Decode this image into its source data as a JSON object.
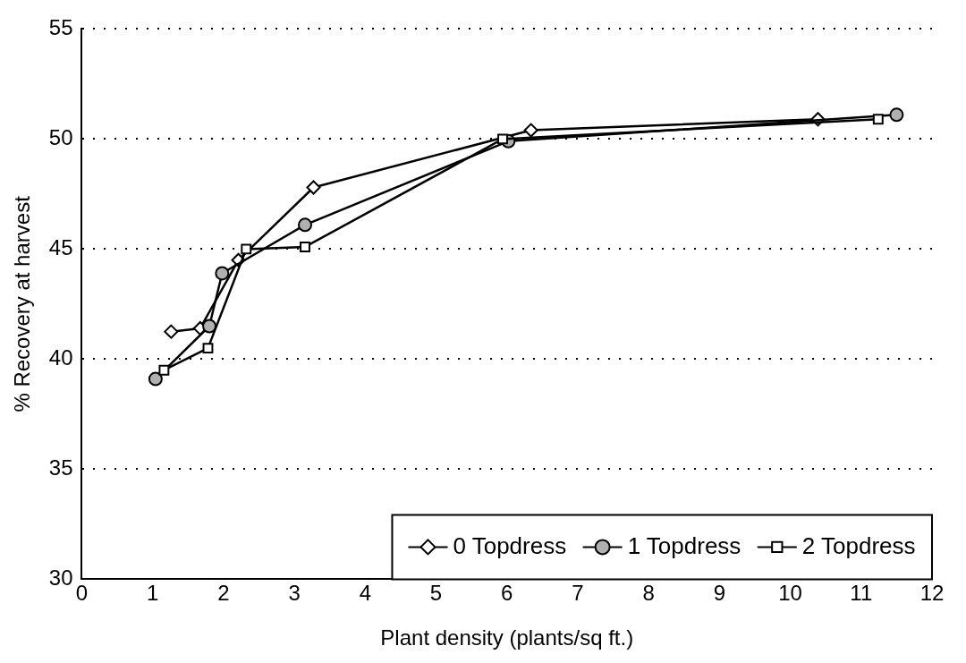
{
  "chart_data": {
    "type": "line",
    "xlabel": "Plant density (plants/sq ft.)",
    "ylabel": "% Recovery at harvest",
    "xlim": [
      0,
      12
    ],
    "xticks": [
      0,
      1,
      2,
      3,
      4,
      5,
      6,
      7,
      8,
      9,
      10,
      11,
      12
    ],
    "ylim": [
      30,
      55
    ],
    "yticks": [
      30,
      35,
      40,
      45,
      50,
      55
    ],
    "grid": "y",
    "legend": "bottom right",
    "line_style": "solid",
    "series": [
      {
        "name": "0 Topdress",
        "color": "#000000",
        "marker": "diamond",
        "x": [
          1.26,
          1.67,
          2.21,
          3.27,
          6.34,
          10.39
        ],
        "values": [
          41.25,
          41.4,
          44.5,
          47.8,
          50.4,
          50.9
        ]
      },
      {
        "name": "1 Topdress",
        "color": "#000000",
        "marker": "circle",
        "x": [
          1.04,
          1.8,
          1.98,
          3.15,
          6.02,
          11.5
        ],
        "values": [
          39.1,
          41.5,
          43.9,
          46.1,
          49.9,
          51.1
        ]
      },
      {
        "name": "2 Topdress",
        "color": "#000000",
        "marker": "square",
        "x": [
          1.16,
          1.78,
          2.32,
          3.15,
          5.94,
          11.24
        ],
        "values": [
          39.5,
          40.5,
          45.0,
          45.1,
          50.0,
          50.9
        ]
      }
    ]
  }
}
